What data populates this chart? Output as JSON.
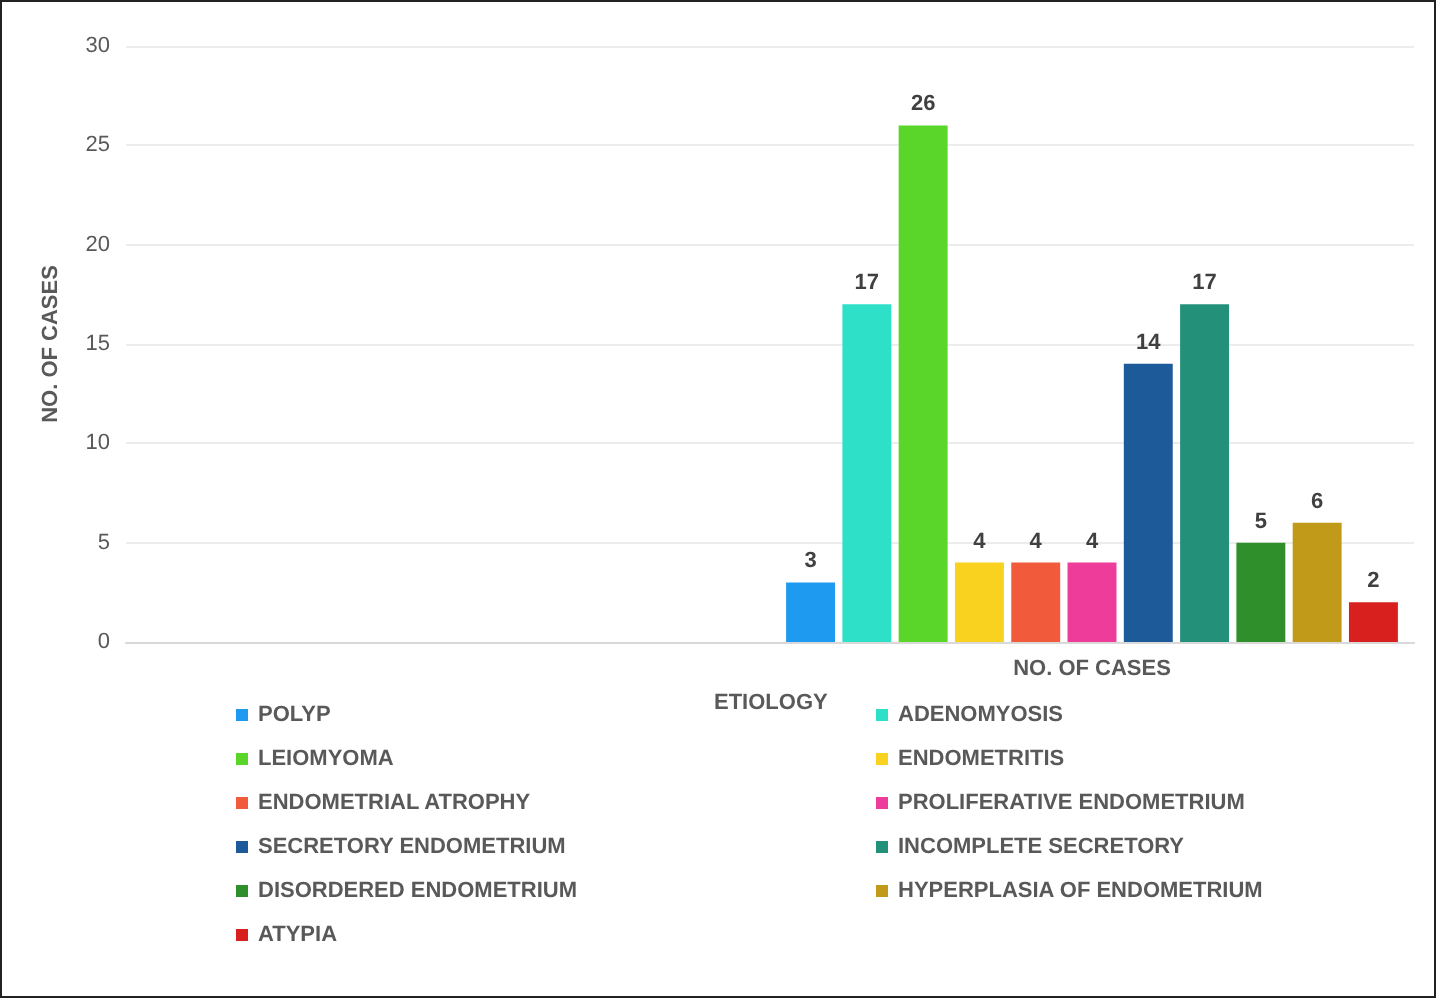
{
  "chart_data": {
    "type": "bar",
    "categories": [
      null,
      "NO. OF CASES"
    ],
    "ylabel": "NO. OF CASES",
    "legend_title": "ETIOLOGY",
    "ylim": [
      0,
      30
    ],
    "yticks": [
      0,
      5,
      10,
      15,
      20,
      25,
      30
    ],
    "grid": "y",
    "legend": "bottom",
    "data_labels": true,
    "series": [
      {
        "name": "POLYP",
        "color": "#1e9bf0",
        "values": [
          null,
          3
        ]
      },
      {
        "name": "ADENOMYOSIS",
        "color": "#2ee0c8",
        "values": [
          null,
          17
        ]
      },
      {
        "name": "LEIOMYOMA",
        "color": "#5ad62a",
        "values": [
          null,
          26
        ]
      },
      {
        "name": "ENDOMETRITIS",
        "color": "#f8d21e",
        "values": [
          null,
          4
        ]
      },
      {
        "name": "ENDOMETRIAL ATROPHY",
        "color": "#f25a3c",
        "values": [
          null,
          4
        ]
      },
      {
        "name": "PROLIFERATIVE ENDOMETRIUM",
        "color": "#ee3c9a",
        "values": [
          null,
          4
        ]
      },
      {
        "name": "SECRETORY ENDOMETRIUM",
        "color": "#1d5a9a",
        "values": [
          null,
          14
        ]
      },
      {
        "name": "INCOMPLETE SECRETORY",
        "color": "#23907a",
        "values": [
          null,
          17
        ]
      },
      {
        "name": "DISORDERED ENDOMETRIUM",
        "color": "#2f8f2a",
        "values": [
          null,
          5
        ]
      },
      {
        "name": "HYPERPLASIA OF ENDOMETRIUM",
        "color": "#c09a18",
        "values": [
          null,
          6
        ]
      },
      {
        "name": "ATYPIA",
        "color": "#d8201e",
        "values": [
          null,
          2
        ]
      }
    ]
  }
}
